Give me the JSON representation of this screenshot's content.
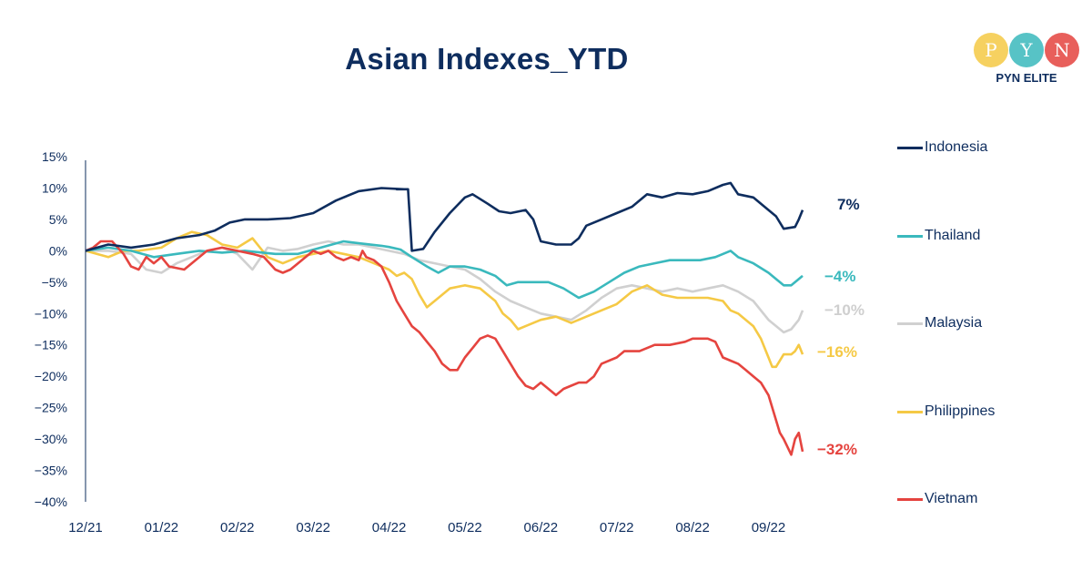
{
  "logo": {
    "letters": [
      "P",
      "Y",
      "N"
    ],
    "text": "PYN ELITE",
    "colors": [
      "#f5c945",
      "#3ab9bd",
      "#e5443f"
    ]
  },
  "chart_data": {
    "type": "line",
    "title": "Asian Indexes_YTD",
    "xlabel": "",
    "ylabel": "",
    "ylim": [
      -40,
      15
    ],
    "yticks": [
      15,
      10,
      5,
      0,
      -5,
      -10,
      -15,
      -20,
      -25,
      -30,
      -35,
      -40
    ],
    "ytick_labels": [
      "15%",
      "10%",
      "5%",
      "0%",
      "−5%",
      "−10%",
      "−15%",
      "−20%",
      "−25%",
      "−30%",
      "−35%",
      "−40%"
    ],
    "xlim": [
      0,
      9.45
    ],
    "xtick_labels": [
      "12/21",
      "01/22",
      "02/22",
      "03/22",
      "04/22",
      "05/22",
      "06/22",
      "07/22",
      "08/22",
      "09/22"
    ],
    "series": [
      {
        "name": "Indonesia",
        "color": "#0e2d5e",
        "end_label": "7%",
        "points": [
          [
            0,
            0
          ],
          [
            0.3,
            1
          ],
          [
            0.6,
            0.5
          ],
          [
            0.9,
            1
          ],
          [
            1.2,
            2
          ],
          [
            1.5,
            2.5
          ],
          [
            1.7,
            3.2
          ],
          [
            1.9,
            4.5
          ],
          [
            2.1,
            5
          ],
          [
            2.4,
            5
          ],
          [
            2.7,
            5.2
          ],
          [
            3.0,
            6
          ],
          [
            3.3,
            8
          ],
          [
            3.6,
            9.5
          ],
          [
            3.9,
            10
          ],
          [
            4.2,
            9.8
          ],
          [
            4.1,
            9.8
          ],
          [
            4.25,
            9.8
          ],
          [
            4.3,
            0
          ],
          [
            4.45,
            0.3
          ],
          [
            4.6,
            3
          ],
          [
            4.8,
            6
          ],
          [
            5.0,
            8.5
          ],
          [
            5.1,
            9
          ],
          [
            5.3,
            7.5
          ],
          [
            5.45,
            6.3
          ],
          [
            5.6,
            6
          ],
          [
            5.8,
            6.5
          ],
          [
            5.9,
            5
          ],
          [
            6.0,
            1.5
          ],
          [
            6.2,
            1
          ],
          [
            6.4,
            1
          ],
          [
            6.5,
            2
          ],
          [
            6.6,
            4
          ],
          [
            6.8,
            5
          ],
          [
            7.0,
            6
          ],
          [
            7.2,
            7
          ],
          [
            7.4,
            9
          ],
          [
            7.6,
            8.5
          ],
          [
            7.8,
            9.2
          ],
          [
            8.0,
            9
          ],
          [
            8.2,
            9.5
          ],
          [
            8.4,
            10.5
          ],
          [
            8.5,
            10.8
          ],
          [
            8.6,
            9
          ],
          [
            8.8,
            8.5
          ],
          [
            9.0,
            6.5
          ],
          [
            9.1,
            5.5
          ],
          [
            9.2,
            3.5
          ],
          [
            9.35,
            3.8
          ],
          [
            9.4,
            5
          ],
          [
            9.45,
            6.5
          ]
        ]
      },
      {
        "name": "Thailand",
        "color": "#3ab9bd",
        "end_label": "−4%",
        "points": [
          [
            0,
            0
          ],
          [
            0.3,
            0.5
          ],
          [
            0.6,
            0
          ],
          [
            0.9,
            -1
          ],
          [
            1.2,
            -0.5
          ],
          [
            1.5,
            0
          ],
          [
            1.8,
            -0.3
          ],
          [
            2.1,
            0
          ],
          [
            2.5,
            -0.5
          ],
          [
            2.8,
            -0.5
          ],
          [
            3.1,
            0.5
          ],
          [
            3.4,
            1.5
          ],
          [
            3.6,
            1.2
          ],
          [
            3.9,
            0.8
          ],
          [
            4.0,
            0.6
          ],
          [
            4.15,
            0.2
          ],
          [
            4.3,
            -1
          ],
          [
            4.5,
            -2.5
          ],
          [
            4.65,
            -3.5
          ],
          [
            4.8,
            -2.5
          ],
          [
            5.0,
            -2.5
          ],
          [
            5.2,
            -3
          ],
          [
            5.4,
            -4
          ],
          [
            5.55,
            -5.5
          ],
          [
            5.7,
            -5
          ],
          [
            5.9,
            -5
          ],
          [
            6.1,
            -5
          ],
          [
            6.3,
            -6
          ],
          [
            6.5,
            -7.5
          ],
          [
            6.7,
            -6.5
          ],
          [
            6.9,
            -5
          ],
          [
            7.1,
            -3.5
          ],
          [
            7.3,
            -2.5
          ],
          [
            7.5,
            -2
          ],
          [
            7.7,
            -1.5
          ],
          [
            7.9,
            -1.5
          ],
          [
            8.1,
            -1.5
          ],
          [
            8.3,
            -1
          ],
          [
            8.5,
            0
          ],
          [
            8.6,
            -1
          ],
          [
            8.8,
            -2
          ],
          [
            9.0,
            -3.5
          ],
          [
            9.1,
            -4.5
          ],
          [
            9.2,
            -5.5
          ],
          [
            9.3,
            -5.5
          ],
          [
            9.4,
            -4.5
          ],
          [
            9.45,
            -4
          ]
        ]
      },
      {
        "name": "Malaysia",
        "color": "#d0d0d0",
        "end_label": "−10%",
        "points": [
          [
            0,
            0
          ],
          [
            0.3,
            0
          ],
          [
            0.6,
            -0.5
          ],
          [
            0.8,
            -3
          ],
          [
            1.0,
            -3.5
          ],
          [
            1.2,
            -2
          ],
          [
            1.4,
            -1
          ],
          [
            1.6,
            0
          ],
          [
            1.8,
            0.5
          ],
          [
            2.0,
            -0.5
          ],
          [
            2.2,
            -3
          ],
          [
            2.4,
            0.5
          ],
          [
            2.6,
            0
          ],
          [
            2.8,
            0.3
          ],
          [
            3.0,
            1
          ],
          [
            3.2,
            1.5
          ],
          [
            3.4,
            1
          ],
          [
            3.6,
            1
          ],
          [
            3.8,
            0.5
          ],
          [
            4.0,
            0
          ],
          [
            4.2,
            -0.5
          ],
          [
            4.4,
            -1.5
          ],
          [
            4.6,
            -2
          ],
          [
            4.8,
            -2.5
          ],
          [
            5.0,
            -3
          ],
          [
            5.2,
            -4.5
          ],
          [
            5.4,
            -6.5
          ],
          [
            5.6,
            -8
          ],
          [
            5.8,
            -9
          ],
          [
            6.0,
            -10
          ],
          [
            6.2,
            -10.5
          ],
          [
            6.4,
            -11
          ],
          [
            6.6,
            -9.5
          ],
          [
            6.8,
            -7.5
          ],
          [
            7.0,
            -6
          ],
          [
            7.2,
            -5.5
          ],
          [
            7.4,
            -6
          ],
          [
            7.6,
            -6.5
          ],
          [
            7.8,
            -6
          ],
          [
            8.0,
            -6.5
          ],
          [
            8.2,
            -6
          ],
          [
            8.4,
            -5.5
          ],
          [
            8.6,
            -6.5
          ],
          [
            8.8,
            -8
          ],
          [
            9.0,
            -11
          ],
          [
            9.2,
            -13
          ],
          [
            9.3,
            -12.5
          ],
          [
            9.4,
            -11
          ],
          [
            9.45,
            -9.5
          ]
        ]
      },
      {
        "name": "Philippines",
        "color": "#f5c945",
        "end_label": "−16%",
        "points": [
          [
            0,
            0
          ],
          [
            0.3,
            -1
          ],
          [
            0.5,
            0
          ],
          [
            0.7,
            0
          ],
          [
            1.0,
            0.5
          ],
          [
            1.2,
            2
          ],
          [
            1.4,
            3
          ],
          [
            1.6,
            2.5
          ],
          [
            1.8,
            1
          ],
          [
            2.0,
            0.5
          ],
          [
            2.2,
            2
          ],
          [
            2.4,
            -1
          ],
          [
            2.6,
            -2
          ],
          [
            2.8,
            -1
          ],
          [
            3.0,
            -0.5
          ],
          [
            3.2,
            0
          ],
          [
            3.4,
            -0.5
          ],
          [
            3.6,
            -1
          ],
          [
            3.8,
            -2
          ],
          [
            4.0,
            -3
          ],
          [
            4.1,
            -4
          ],
          [
            4.2,
            -3.5
          ],
          [
            4.3,
            -4.5
          ],
          [
            4.4,
            -7
          ],
          [
            4.5,
            -9
          ],
          [
            4.6,
            -8
          ],
          [
            4.8,
            -6
          ],
          [
            5.0,
            -5.5
          ],
          [
            5.2,
            -6
          ],
          [
            5.3,
            -7
          ],
          [
            5.4,
            -8
          ],
          [
            5.5,
            -10
          ],
          [
            5.6,
            -11
          ],
          [
            5.7,
            -12.5
          ],
          [
            5.8,
            -12
          ],
          [
            6.0,
            -11
          ],
          [
            6.2,
            -10.5
          ],
          [
            6.4,
            -11.5
          ],
          [
            6.6,
            -10.5
          ],
          [
            6.8,
            -9.5
          ],
          [
            7.0,
            -8.5
          ],
          [
            7.2,
            -6.5
          ],
          [
            7.4,
            -5.5
          ],
          [
            7.6,
            -7
          ],
          [
            7.8,
            -7.5
          ],
          [
            8.0,
            -7.5
          ],
          [
            8.2,
            -7.5
          ],
          [
            8.4,
            -8
          ],
          [
            8.5,
            -9.5
          ],
          [
            8.6,
            -10
          ],
          [
            8.8,
            -12
          ],
          [
            8.9,
            -14
          ],
          [
            9.0,
            -17
          ],
          [
            9.05,
            -18.5
          ],
          [
            9.1,
            -18.5
          ],
          [
            9.2,
            -16.5
          ],
          [
            9.3,
            -16.5
          ],
          [
            9.35,
            -16
          ],
          [
            9.4,
            -15
          ],
          [
            9.45,
            -16.5
          ]
        ]
      },
      {
        "name": "Vietnam",
        "color": "#e5443f",
        "end_label": "−32%",
        "points": [
          [
            0,
            0
          ],
          [
            0.1,
            0.5
          ],
          [
            0.2,
            1.5
          ],
          [
            0.35,
            1.5
          ],
          [
            0.5,
            -0.5
          ],
          [
            0.6,
            -2.5
          ],
          [
            0.7,
            -3
          ],
          [
            0.8,
            -1
          ],
          [
            0.9,
            -2
          ],
          [
            1.0,
            -1
          ],
          [
            1.1,
            -2.5
          ],
          [
            1.3,
            -3
          ],
          [
            1.5,
            -1
          ],
          [
            1.6,
            0
          ],
          [
            1.8,
            0.5
          ],
          [
            2.0,
            0
          ],
          [
            2.2,
            -0.5
          ],
          [
            2.35,
            -1
          ],
          [
            2.5,
            -3
          ],
          [
            2.6,
            -3.5
          ],
          [
            2.7,
            -3
          ],
          [
            2.8,
            -2
          ],
          [
            3.0,
            0
          ],
          [
            3.1,
            -0.5
          ],
          [
            3.2,
            0
          ],
          [
            3.3,
            -1
          ],
          [
            3.4,
            -1.5
          ],
          [
            3.5,
            -1
          ],
          [
            3.6,
            -1.5
          ],
          [
            3.65,
            0
          ],
          [
            3.7,
            -1
          ],
          [
            3.8,
            -1.5
          ],
          [
            3.9,
            -2.5
          ],
          [
            4.0,
            -5
          ],
          [
            4.1,
            -8
          ],
          [
            4.2,
            -10
          ],
          [
            4.3,
            -12
          ],
          [
            4.4,
            -13
          ],
          [
            4.5,
            -14.5
          ],
          [
            4.6,
            -16
          ],
          [
            4.7,
            -18
          ],
          [
            4.8,
            -19
          ],
          [
            4.9,
            -19
          ],
          [
            5.0,
            -17
          ],
          [
            5.1,
            -15.5
          ],
          [
            5.2,
            -14
          ],
          [
            5.3,
            -13.5
          ],
          [
            5.4,
            -14
          ],
          [
            5.5,
            -16
          ],
          [
            5.6,
            -18
          ],
          [
            5.7,
            -20
          ],
          [
            5.8,
            -21.5
          ],
          [
            5.9,
            -22
          ],
          [
            6.0,
            -21
          ],
          [
            6.1,
            -22
          ],
          [
            6.2,
            -23
          ],
          [
            6.3,
            -22
          ],
          [
            6.4,
            -21.5
          ],
          [
            6.5,
            -21
          ],
          [
            6.6,
            -21
          ],
          [
            6.7,
            -20
          ],
          [
            6.8,
            -18
          ],
          [
            7.0,
            -17
          ],
          [
            7.1,
            -16
          ],
          [
            7.3,
            -16
          ],
          [
            7.5,
            -15
          ],
          [
            7.7,
            -15
          ],
          [
            7.9,
            -14.5
          ],
          [
            8.0,
            -14
          ],
          [
            8.2,
            -14
          ],
          [
            8.3,
            -14.5
          ],
          [
            8.4,
            -17
          ],
          [
            8.5,
            -17.5
          ],
          [
            8.6,
            -18
          ],
          [
            8.7,
            -19
          ],
          [
            8.8,
            -20
          ],
          [
            8.9,
            -21
          ],
          [
            9.0,
            -23
          ],
          [
            9.1,
            -27
          ],
          [
            9.15,
            -29
          ],
          [
            9.2,
            -30
          ],
          [
            9.3,
            -32.5
          ],
          [
            9.35,
            -30
          ],
          [
            9.4,
            -29
          ],
          [
            9.45,
            -32
          ]
        ]
      }
    ]
  }
}
